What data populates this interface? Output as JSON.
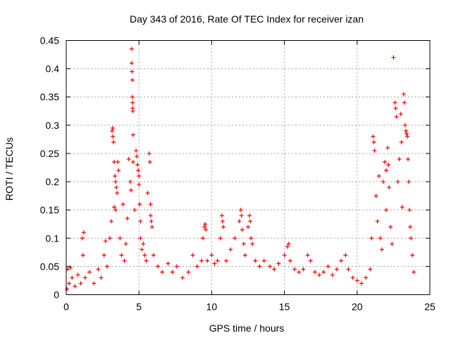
{
  "chart_data": {
    "type": "scatter",
    "title": "Day 343 of 2016, Rate Of TEC Index for receiver izan",
    "xlabel": "GPS time / hours",
    "ylabel": "ROTI / TECUs",
    "xlim": [
      0,
      25
    ],
    "ylim": [
      0,
      0.45
    ],
    "xticks": [
      0,
      5,
      10,
      15,
      20,
      25
    ],
    "yticks": [
      0,
      0.05,
      0.1,
      0.15,
      0.2,
      0.25,
      0.3,
      0.35,
      0.4,
      0.45
    ],
    "xtick_labels": [
      "0",
      "5",
      "10",
      "15",
      "20",
      "25"
    ],
    "ytick_labels": [
      "0",
      "0.05",
      "0.1",
      "0.15",
      "0.2",
      "0.25",
      "0.3",
      "0.35",
      "0.4",
      "0.45"
    ],
    "grid": true,
    "marker": "+",
    "color": "#ff0000",
    "series": [
      {
        "name": "ROTI",
        "points": [
          [
            0.05,
            0.01
          ],
          [
            0.1,
            0.045
          ],
          [
            0.2,
            0.02
          ],
          [
            0.3,
            0.048
          ],
          [
            0.4,
            0.03
          ],
          [
            0.6,
            0.015
          ],
          [
            0.8,
            0.035
          ],
          [
            1.0,
            0.02
          ],
          [
            1.1,
            0.1
          ],
          [
            1.15,
            0.07
          ],
          [
            1.2,
            0.11
          ],
          [
            1.3,
            0.03
          ],
          [
            1.6,
            0.04
          ],
          [
            1.9,
            0.02
          ],
          [
            2.2,
            0.045
          ],
          [
            2.4,
            0.03
          ],
          [
            2.6,
            0.07
          ],
          [
            2.7,
            0.095
          ],
          [
            2.8,
            0.05
          ],
          [
            3.0,
            0.1
          ],
          [
            3.1,
            0.13
          ],
          [
            3.15,
            0.29
          ],
          [
            3.2,
            0.295
          ],
          [
            3.2,
            0.28
          ],
          [
            3.25,
            0.27
          ],
          [
            3.3,
            0.235
          ],
          [
            3.35,
            0.21
          ],
          [
            3.4,
            0.2
          ],
          [
            3.45,
            0.19
          ],
          [
            3.5,
            0.18
          ],
          [
            3.55,
            0.235
          ],
          [
            3.6,
            0.22
          ],
          [
            3.3,
            0.155
          ],
          [
            3.4,
            0.15
          ],
          [
            3.7,
            0.1
          ],
          [
            3.8,
            0.07
          ],
          [
            3.9,
            0.16
          ],
          [
            4.0,
            0.06
          ],
          [
            4.1,
            0.09
          ],
          [
            4.2,
            0.135
          ],
          [
            4.3,
            0.24
          ],
          [
            4.4,
            0.2
          ],
          [
            4.45,
            0.185
          ],
          [
            4.5,
            0.435
          ],
          [
            4.5,
            0.41
          ],
          [
            4.52,
            0.395
          ],
          [
            4.55,
            0.38
          ],
          [
            4.55,
            0.35
          ],
          [
            4.56,
            0.34
          ],
          [
            4.57,
            0.33
          ],
          [
            4.58,
            0.325
          ],
          [
            4.6,
            0.283
          ],
          [
            4.6,
            0.235
          ],
          [
            4.7,
            0.15
          ],
          [
            4.8,
            0.255
          ],
          [
            4.85,
            0.245
          ],
          [
            4.9,
            0.23
          ],
          [
            4.95,
            0.22
          ],
          [
            5.0,
            0.21
          ],
          [
            5.0,
            0.195
          ],
          [
            5.05,
            0.16
          ],
          [
            5.1,
            0.13
          ],
          [
            5.1,
            0.1
          ],
          [
            5.2,
            0.08
          ],
          [
            5.3,
            0.09
          ],
          [
            5.4,
            0.07
          ],
          [
            5.5,
            0.06
          ],
          [
            5.6,
            0.18
          ],
          [
            5.7,
            0.25
          ],
          [
            5.75,
            0.235
          ],
          [
            5.8,
            0.16
          ],
          [
            5.8,
            0.14
          ],
          [
            5.85,
            0.13
          ],
          [
            5.9,
            0.12
          ],
          [
            6.0,
            0.07
          ],
          [
            6.3,
            0.05
          ],
          [
            6.6,
            0.04
          ],
          [
            7.0,
            0.055
          ],
          [
            7.3,
            0.04
          ],
          [
            7.6,
            0.05
          ],
          [
            8.0,
            0.03
          ],
          [
            8.4,
            0.04
          ],
          [
            8.7,
            0.07
          ],
          [
            9.0,
            0.05
          ],
          [
            9.3,
            0.06
          ],
          [
            9.4,
            0.1
          ],
          [
            9.5,
            0.12
          ],
          [
            9.55,
            0.125
          ],
          [
            9.6,
            0.115
          ],
          [
            9.7,
            0.06
          ],
          [
            10.0,
            0.07
          ],
          [
            10.2,
            0.055
          ],
          [
            10.4,
            0.06
          ],
          [
            10.6,
            0.1
          ],
          [
            10.7,
            0.14
          ],
          [
            10.75,
            0.13
          ],
          [
            10.8,
            0.12
          ],
          [
            11.0,
            0.06
          ],
          [
            11.3,
            0.08
          ],
          [
            11.6,
            0.1
          ],
          [
            11.9,
            0.13
          ],
          [
            12.0,
            0.15
          ],
          [
            12.05,
            0.14
          ],
          [
            12.1,
            0.115
          ],
          [
            12.2,
            0.09
          ],
          [
            12.3,
            0.07
          ],
          [
            12.5,
            0.12
          ],
          [
            12.6,
            0.14
          ],
          [
            12.65,
            0.13
          ],
          [
            12.7,
            0.1
          ],
          [
            12.8,
            0.09
          ],
          [
            13.0,
            0.06
          ],
          [
            13.3,
            0.05
          ],
          [
            13.6,
            0.06
          ],
          [
            14.0,
            0.05
          ],
          [
            14.3,
            0.045
          ],
          [
            14.6,
            0.055
          ],
          [
            15.0,
            0.07
          ],
          [
            15.2,
            0.085
          ],
          [
            15.3,
            0.09
          ],
          [
            15.4,
            0.06
          ],
          [
            15.7,
            0.045
          ],
          [
            16.0,
            0.04
          ],
          [
            16.3,
            0.045
          ],
          [
            16.6,
            0.07
          ],
          [
            16.8,
            0.06
          ],
          [
            17.1,
            0.04
          ],
          [
            17.4,
            0.035
          ],
          [
            17.7,
            0.04
          ],
          [
            18.0,
            0.05
          ],
          [
            18.3,
            0.035
          ],
          [
            18.6,
            0.045
          ],
          [
            18.9,
            0.06
          ],
          [
            19.2,
            0.07
          ],
          [
            19.4,
            0.045
          ],
          [
            19.7,
            0.03
          ],
          [
            20.0,
            0.025
          ],
          [
            20.3,
            0.02
          ],
          [
            20.6,
            0.03
          ],
          [
            20.9,
            0.045
          ],
          [
            21.0,
            0.1
          ],
          [
            21.1,
            0.28
          ],
          [
            21.15,
            0.27
          ],
          [
            21.2,
            0.255
          ],
          [
            21.3,
            0.175
          ],
          [
            21.4,
            0.13
          ],
          [
            21.5,
            0.21
          ],
          [
            21.6,
            0.1
          ],
          [
            21.7,
            0.08
          ],
          [
            21.8,
            0.2
          ],
          [
            21.9,
            0.235
          ],
          [
            22.0,
            0.22
          ],
          [
            22.0,
            0.15
          ],
          [
            22.1,
            0.26
          ],
          [
            22.15,
            0.23
          ],
          [
            22.2,
            0.19
          ],
          [
            22.3,
            0.12
          ],
          [
            22.4,
            0.09
          ],
          [
            22.5,
            0.42
          ],
          [
            22.6,
            0.34
          ],
          [
            22.65,
            0.33
          ],
          [
            22.7,
            0.315
          ],
          [
            22.8,
            0.2
          ],
          [
            22.9,
            0.24
          ],
          [
            23.0,
            0.32
          ],
          [
            23.05,
            0.27
          ],
          [
            23.1,
            0.155
          ],
          [
            23.2,
            0.355
          ],
          [
            23.25,
            0.34
          ],
          [
            23.3,
            0.3
          ],
          [
            23.35,
            0.29
          ],
          [
            23.4,
            0.285
          ],
          [
            23.45,
            0.28
          ],
          [
            23.5,
            0.24
          ],
          [
            23.55,
            0.2
          ],
          [
            23.6,
            0.15
          ],
          [
            23.65,
            0.12
          ],
          [
            23.7,
            0.1
          ],
          [
            23.8,
            0.07
          ],
          [
            23.9,
            0.04
          ]
        ]
      }
    ]
  }
}
